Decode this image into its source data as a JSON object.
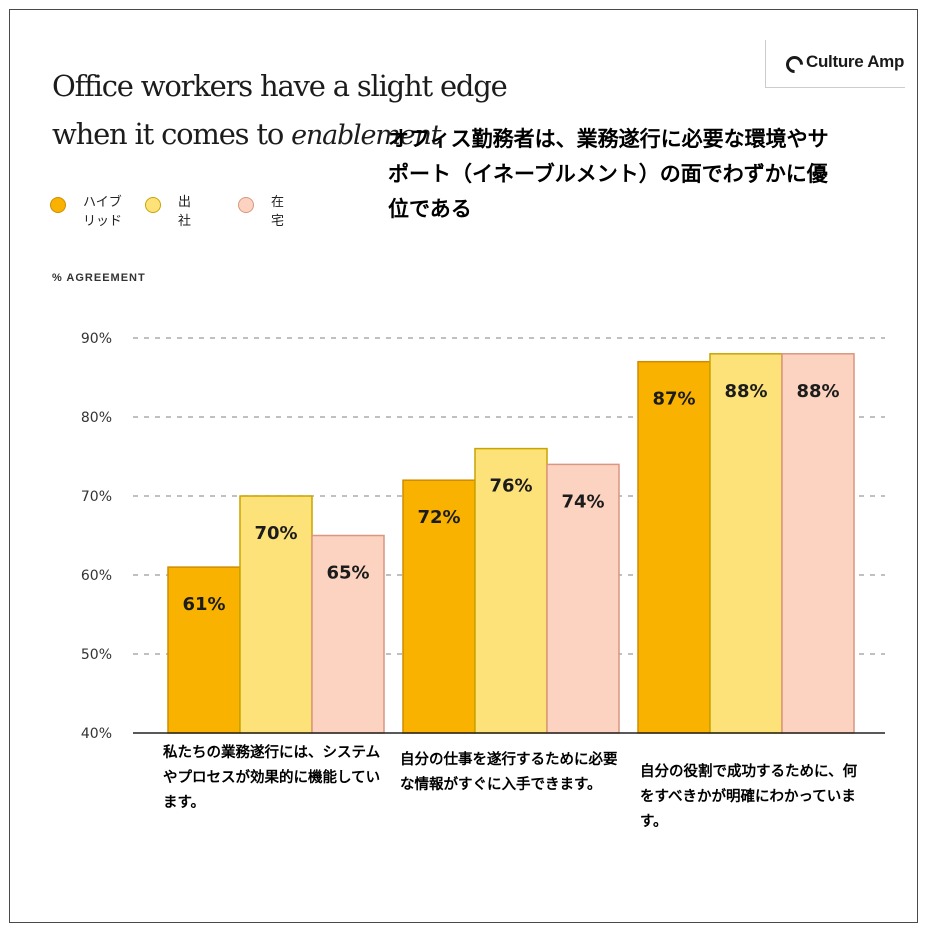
{
  "title": {
    "line1": "Office workers have a slight edge",
    "line2_prefix": "when it comes to ",
    "line2_accent": "enablement"
  },
  "logo": {
    "icon": "culture-amp-c-icon",
    "text": "Culture Amp"
  },
  "japanese_title": "オフィス勤務者は、業務遂行に必要な環境やサポート（イネーブルメント）の面でわずかに優位である",
  "legend": [
    {
      "label": "ハイブリッド",
      "color": "#F9B200",
      "border": "#D08C00"
    },
    {
      "label": "出社",
      "color": "#FDE27A",
      "border": "#C9A400"
    },
    {
      "label": "在宅",
      "color": "#FBD3C0",
      "border": "#D99680"
    }
  ],
  "y_axis_title": "% AGREEMENT",
  "chart_data": {
    "type": "bar",
    "title": "Office workers have a slight edge when it comes to enablement",
    "ylabel": "% AGREEMENT",
    "ylim": [
      40,
      90
    ],
    "yticks": [
      "40%",
      "50%",
      "60%",
      "70%",
      "80%",
      "90%"
    ],
    "grid": true,
    "legend_position": "top-left",
    "categories": [
      "私たちの業務遂行には、システムやプロセスが効果的に機能しています。",
      "自分の仕事を遂行するために必要な情報がすぐに入手できます。",
      "自分の役割で成功するために、何をすべきかが明確にわかっています。"
    ],
    "series": [
      {
        "name": "ハイブリッド",
        "values": [
          61,
          72,
          87
        ],
        "labels": [
          "61%",
          "72%",
          "87%"
        ],
        "color": "#F9B200"
      },
      {
        "name": "出社",
        "values": [
          70,
          76,
          88
        ],
        "labels": [
          "70%",
          "76%",
          "88%"
        ],
        "color": "#FDE27A"
      },
      {
        "name": "在宅",
        "values": [
          65,
          74,
          88
        ],
        "labels": [
          "65%",
          "74%",
          "88%"
        ],
        "color": "#FBD3C0"
      }
    ]
  }
}
